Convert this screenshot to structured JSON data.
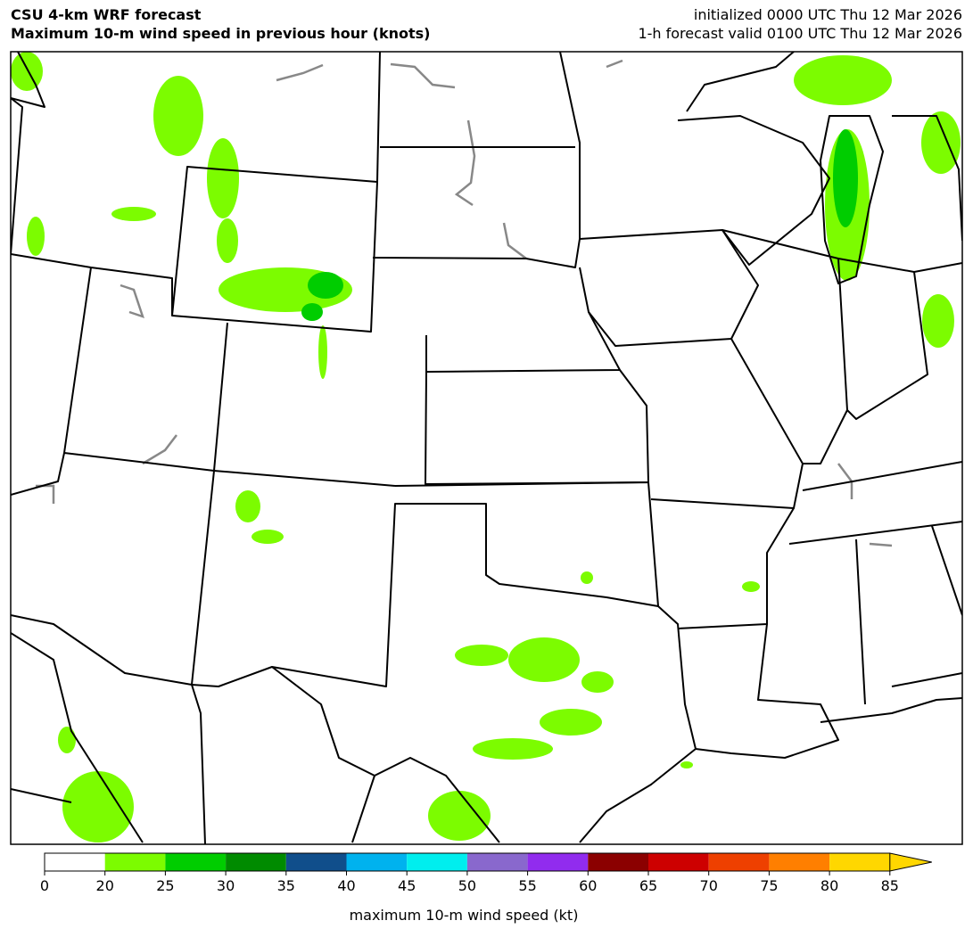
{
  "header": {
    "title": "CSU 4-km WRF forecast",
    "subtitle": "Maximum 10-m wind speed in previous hour (knots)",
    "init": "initialized 0000 UTC Thu 12 Mar 2026",
    "valid": "1-h forecast valid 0100 UTC Thu 12 Mar 2026"
  },
  "colorbar": {
    "ticks": [
      0,
      20,
      25,
      30,
      35,
      40,
      45,
      50,
      55,
      60,
      65,
      70,
      75,
      80,
      85
    ],
    "colors": [
      "#ffffff",
      "#7cfc00",
      "#00cd00",
      "#008b00",
      "#104e8b",
      "#00b2ee",
      "#00eeee",
      "#8968cd",
      "#912cee",
      "#8b0000",
      "#cd0000",
      "#ee4000",
      "#ff7f00",
      "#ffd700"
    ],
    "extend_color": "#ffd700",
    "label": "maximum 10-m wind speed (kt)"
  }
}
